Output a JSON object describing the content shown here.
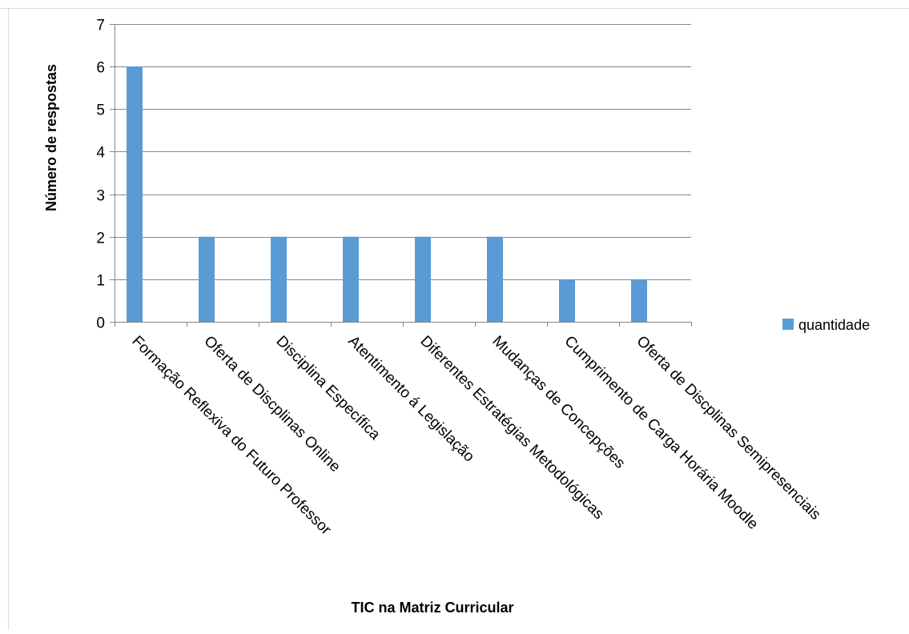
{
  "chart_data": {
    "type": "bar",
    "title": "",
    "xlabel": "TIC na Matriz Curricular",
    "ylabel": "Número de respostas",
    "categories": [
      "Formação Reflexiva do Futuro Professor",
      "Oferta de Discplinas Online",
      "Disciplina Específica",
      "Atentimento á Legislação",
      "Diferentes Estratégias Metodológicas",
      "Mudanças de Concepções",
      "Cumprimento de Carga Horária Moodle",
      "Oferta de Discplinas Semipresenciais"
    ],
    "series": [
      {
        "name": "quantidade",
        "values": [
          6,
          2,
          2,
          2,
          2,
          2,
          1,
          1
        ],
        "color": "#5b9bd5"
      }
    ],
    "ylim": [
      0,
      7
    ],
    "yticks": [
      "0",
      "1",
      "2",
      "3",
      "4",
      "5",
      "6",
      "7"
    ],
    "grid": true,
    "legend_position": "right",
    "colors": {
      "bar": "#5b9bd5",
      "grid": "#868686",
      "axis": "#868686",
      "frame": "#d9d9d9",
      "text": "#000000"
    }
  }
}
